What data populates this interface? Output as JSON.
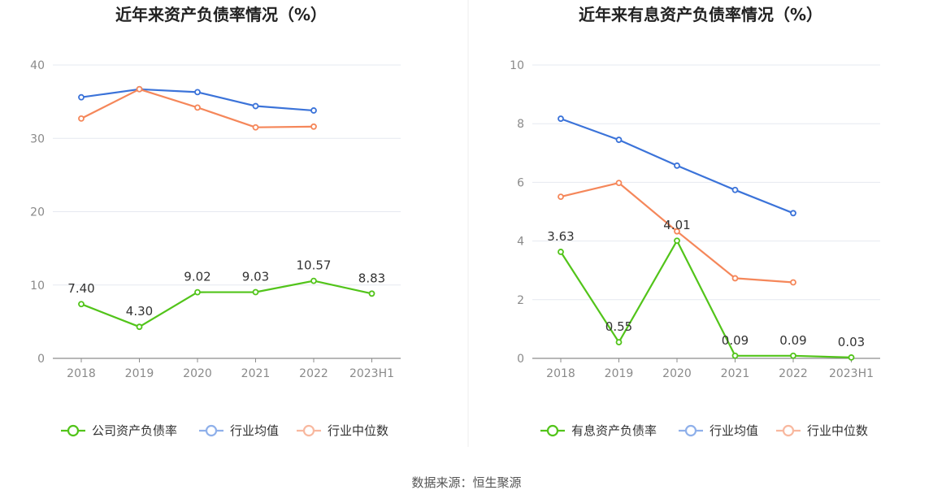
{
  "chart_data": [
    {
      "type": "line",
      "title": "近年来资产负债率情况（%）",
      "categories": [
        "2018",
        "2019",
        "2020",
        "2021",
        "2022",
        "2023H1"
      ],
      "ylim": [
        0,
        40
      ],
      "yticks": [
        0,
        10,
        20,
        30,
        40
      ],
      "series": [
        {
          "name": "公司资产负债率",
          "color": "#52c41a",
          "values": [
            7.4,
            4.3,
            9.02,
            9.03,
            10.57,
            8.83
          ],
          "labels": [
            "7.40",
            "4.30",
            "9.02",
            "9.03",
            "10.57",
            "8.83"
          ]
        },
        {
          "name": "行业均值",
          "color": "#3b73d9",
          "legend_color": "#8fb0ea",
          "values": [
            35.6,
            36.7,
            36.3,
            34.4,
            33.8,
            null
          ]
        },
        {
          "name": "行业中位数",
          "color": "#f5875a",
          "legend_color": "#f8b89f",
          "values": [
            32.7,
            36.7,
            34.2,
            31.5,
            31.6,
            null
          ]
        }
      ]
    },
    {
      "type": "line",
      "title": "近年来有息资产负债率情况（%）",
      "categories": [
        "2018",
        "2019",
        "2020",
        "2021",
        "2022",
        "2023H1"
      ],
      "ylim": [
        0,
        10
      ],
      "yticks": [
        0,
        2,
        4,
        6,
        8,
        10
      ],
      "series": [
        {
          "name": "有息资产负债率",
          "color": "#52c41a",
          "values": [
            3.63,
            0.55,
            4.01,
            0.09,
            0.09,
            0.03
          ],
          "labels": [
            "3.63",
            "0.55",
            "4.01",
            "0.09",
            "0.09",
            "0.03"
          ]
        },
        {
          "name": "行业均值",
          "color": "#3b73d9",
          "legend_color": "#8fb0ea",
          "values": [
            8.17,
            7.45,
            6.57,
            5.74,
            4.95,
            null
          ]
        },
        {
          "name": "行业中位数",
          "color": "#f5875a",
          "legend_color": "#f8b89f",
          "values": [
            5.51,
            5.98,
            4.33,
            2.73,
            2.59,
            null
          ]
        }
      ]
    }
  ],
  "footer": {
    "source": "数据来源：恒生聚源"
  }
}
